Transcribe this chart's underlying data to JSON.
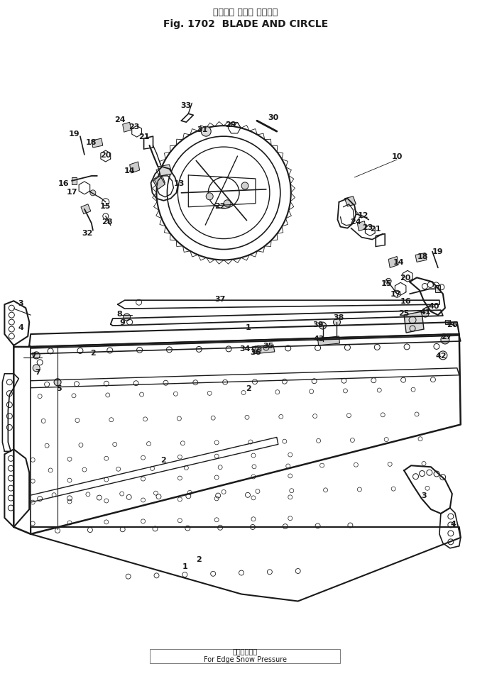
{
  "title_japanese": "ブレード および サークル",
  "title_english": "Fig. 1702  BLADE AND CIRCLE",
  "footer_japanese": "エッジ圧雪用",
  "footer_english": "For Edge Snow Pressure",
  "bg_color": "#ffffff",
  "line_color": "#1a1a1a",
  "fig_width": 6.93,
  "fig_height": 9.54,
  "dpi": 100
}
